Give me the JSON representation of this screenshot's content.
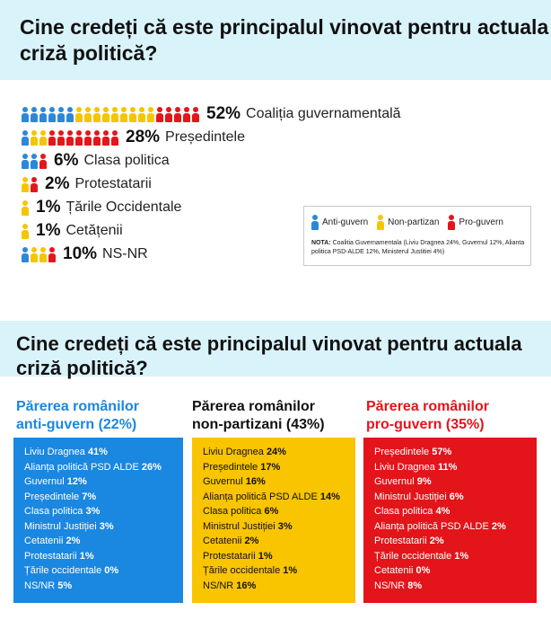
{
  "colors": {
    "anti": "#2b88d8",
    "non": "#f6c500",
    "pro": "#e2171b",
    "banner": "#d9f3fb"
  },
  "header1": {
    "title": "Cine credeți că este principalul vinovat pentru actuala criză politică?"
  },
  "header2": {
    "title": "Cine credeți că este principalul vinovat pentru actuala criză politică?"
  },
  "chart_data": [
    {
      "type": "bar",
      "title": "Cine credeți că este principalul vinovat pentru actuala criză politică?",
      "categories": [
        "Coaliția guvernamentală",
        "Președintele",
        "Clasa politica",
        "Protestatarii",
        "Țările Occidentale",
        "Cetățenii",
        "NS-NR"
      ],
      "values": [
        52,
        28,
        6,
        2,
        1,
        1,
        10
      ],
      "value_labels": [
        "52%",
        "28%",
        "6%",
        "2%",
        "1%",
        "1%",
        "10%"
      ],
      "icon_composition": [
        {
          "anti": 6,
          "non": 9,
          "pro": 5
        },
        {
          "anti": 1,
          "non": 2,
          "pro": 8
        },
        {
          "anti": 2,
          "non": 0,
          "pro": 1
        },
        {
          "anti": 0,
          "non": 1,
          "pro": 1
        },
        {
          "anti": 0,
          "non": 1,
          "pro": 0
        },
        {
          "anti": 0,
          "non": 1,
          "pro": 0
        },
        {
          "anti": 1,
          "non": 2,
          "pro": 1
        }
      ],
      "legend": [
        {
          "key": "anti",
          "label": "Anti-guvern"
        },
        {
          "key": "non",
          "label": "Non-partizan"
        },
        {
          "key": "pro",
          "label": "Pro-guvern"
        }
      ],
      "note_label": "NOTA:",
      "note_text": "Coalitia Guvernamentala (Liviu Dragnea 24%, Guvernul 12%, Alianta politica PSD-ALDE 12%, Ministerul Justitiei 4%)"
    },
    {
      "type": "table",
      "columns": [
        {
          "key": "anti",
          "title_line1": "Părerea românilor",
          "title_line2": "anti-guvern (22%)",
          "rows": [
            {
              "label": "Liviu Dragnea",
              "value": "41%"
            },
            {
              "label": "Alianța politică PSD ALDE",
              "value": "26%"
            },
            {
              "label": "Guvernul",
              "value": "12%"
            },
            {
              "label": "Președintele",
              "value": "7%"
            },
            {
              "label": "Clasa politica",
              "value": "3%"
            },
            {
              "label": "Ministrul Justiției",
              "value": "3%"
            },
            {
              "label": "Cetatenii",
              "value": "2%"
            },
            {
              "label": "Protestatarii",
              "value": "1%"
            },
            {
              "label": "Țările occidentale",
              "value": "0%"
            },
            {
              "label": "NS/NR",
              "value": "5%"
            }
          ]
        },
        {
          "key": "non",
          "title_line1": "Părerea românilor",
          "title_line2": "non-partizani (43%)",
          "rows": [
            {
              "label": "Liviu Dragnea",
              "value": "24%"
            },
            {
              "label": "Președintele",
              "value": "17%"
            },
            {
              "label": "Guvernul",
              "value": "16%"
            },
            {
              "label": "Alianța politică PSD ALDE",
              "value": "14%"
            },
            {
              "label": "Clasa politica",
              "value": "6%"
            },
            {
              "label": "Ministrul Justiției",
              "value": "3%"
            },
            {
              "label": "Cetatenii",
              "value": "2%"
            },
            {
              "label": "Protestatarii",
              "value": "1%"
            },
            {
              "label": "Țările occidentale",
              "value": "1%"
            },
            {
              "label": "NS/NR",
              "value": "16%"
            }
          ]
        },
        {
          "key": "pro",
          "title_line1": "Părerea românilor",
          "title_line2": "pro-guvern (35%)",
          "rows": [
            {
              "label": "Președintele",
              "value": "57%"
            },
            {
              "label": "Liviu Dragnea",
              "value": "11%"
            },
            {
              "label": "Guvernul",
              "value": "9%"
            },
            {
              "label": "Ministrul Justiției",
              "value": "6%"
            },
            {
              "label": "Clasa politica",
              "value": "4%"
            },
            {
              "label": "Alianța politică PSD ALDE",
              "value": "2%"
            },
            {
              "label": "Protestatarii",
              "value": "2%"
            },
            {
              "label": "Țările occidentale",
              "value": "1%"
            },
            {
              "label": "Cetatenii",
              "value": "0%"
            },
            {
              "label": "NS/NR",
              "value": "8%"
            }
          ]
        }
      ]
    }
  ]
}
